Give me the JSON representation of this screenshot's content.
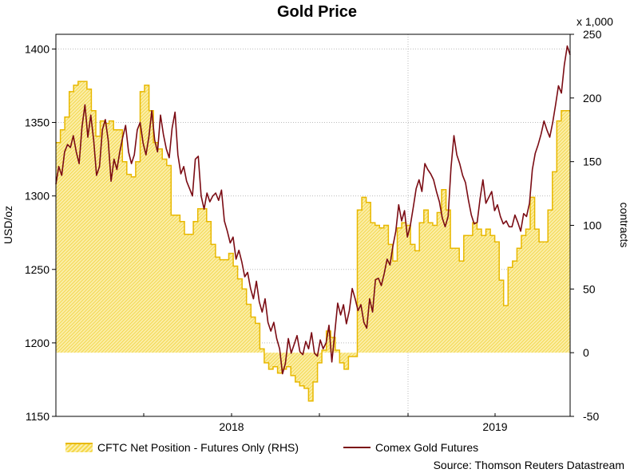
{
  "title": "Gold Price",
  "chart_data": {
    "type": "line",
    "title": "Gold Price",
    "x_tick_labels": [
      "2018",
      "2019"
    ],
    "left_axis": {
      "label": "USD/oz",
      "ylim": [
        1150,
        1410
      ],
      "ticks": [
        1150,
        1200,
        1250,
        1300,
        1350,
        1400
      ]
    },
    "right_axis": {
      "label": "contracts",
      "multiplier": "x 1,000",
      "ylim": [
        -50,
        250
      ],
      "ticks": [
        -50,
        0,
        50,
        100,
        150,
        200,
        250
      ]
    },
    "series": [
      {
        "name": "CFTC Net Position - Futures Only (RHS)",
        "type": "area-step",
        "axis": "right",
        "color": "#e8b800",
        "fill": "#f8e071",
        "weekly_values": [
          165,
          175,
          185,
          205,
          210,
          213,
          213,
          207,
          190,
          170,
          182,
          180,
          182,
          175,
          175,
          150,
          140,
          138,
          150,
          205,
          210,
          190,
          165,
          160,
          152,
          147,
          108,
          108,
          103,
          93,
          93,
          103,
          113,
          113,
          103,
          85,
          75,
          73,
          73,
          78,
          68,
          58,
          50,
          38,
          28,
          23,
          3,
          -8,
          -13,
          -11,
          -16,
          -13,
          -11,
          -18,
          -23,
          -26,
          -28,
          -38,
          -23,
          -8,
          2,
          17,
          12,
          2,
          -8,
          -13,
          -3,
          -3,
          112,
          122,
          118,
          102,
          100,
          98,
          100,
          85,
          72,
          98,
          102,
          100,
          85,
          80,
          102,
          112,
          102,
          100,
          110,
          128,
          112,
          82,
          82,
          72,
          92,
          92,
          102,
          97,
          92,
          97,
          92,
          87,
          57,
          37,
          67,
          72,
          82,
          92,
          97,
          122,
          97,
          87,
          87,
          112,
          142,
          182,
          190,
          190
        ]
      },
      {
        "name": "Comex Gold Futures",
        "type": "line",
        "axis": "left",
        "color": "#7b0c14",
        "values": [
          1308,
          1320,
          1314,
          1330,
          1335,
          1333,
          1341,
          1330,
          1322,
          1347,
          1362,
          1340,
          1355,
          1338,
          1314,
          1320,
          1345,
          1352,
          1338,
          1310,
          1325,
          1318,
          1330,
          1340,
          1348,
          1330,
          1322,
          1328,
          1345,
          1350,
          1336,
          1328,
          1340,
          1358,
          1338,
          1330,
          1355,
          1342,
          1332,
          1326,
          1346,
          1357,
          1328,
          1315,
          1320,
          1310,
          1305,
          1300,
          1325,
          1327,
          1300,
          1291,
          1302,
          1296,
          1300,
          1302,
          1297,
          1304,
          1283,
          1276,
          1268,
          1272,
          1257,
          1263,
          1255,
          1245,
          1248,
          1237,
          1230,
          1242,
          1228,
          1221,
          1230,
          1214,
          1208,
          1214,
          1203,
          1196,
          1179,
          1186,
          1203,
          1193,
          1199,
          1205,
          1194,
          1192,
          1201,
          1196,
          1207,
          1193,
          1191,
          1202,
          1196,
          1200,
          1212,
          1187,
          1207,
          1227,
          1219,
          1226,
          1213,
          1222,
          1237,
          1230,
          1222,
          1226,
          1214,
          1210,
          1230,
          1221,
          1243,
          1244,
          1239,
          1247,
          1257,
          1253,
          1266,
          1276,
          1294,
          1283,
          1290,
          1272,
          1280,
          1292,
          1305,
          1311,
          1303,
          1322,
          1318,
          1315,
          1311,
          1303,
          1296,
          1285,
          1279,
          1286,
          1319,
          1341,
          1328,
          1322,
          1314,
          1309,
          1297,
          1287,
          1281,
          1282,
          1298,
          1311,
          1295,
          1299,
          1303,
          1290,
          1294,
          1286,
          1281,
          1283,
          1279,
          1279,
          1287,
          1282,
          1276,
          1288,
          1286,
          1295,
          1318,
          1329,
          1335,
          1342,
          1351,
          1345,
          1340,
          1350,
          1362,
          1375,
          1370,
          1389,
          1402,
          1396
        ]
      }
    ],
    "legend": {
      "position": "bottom"
    }
  },
  "source": "Source: Thomson Reuters Datastream"
}
